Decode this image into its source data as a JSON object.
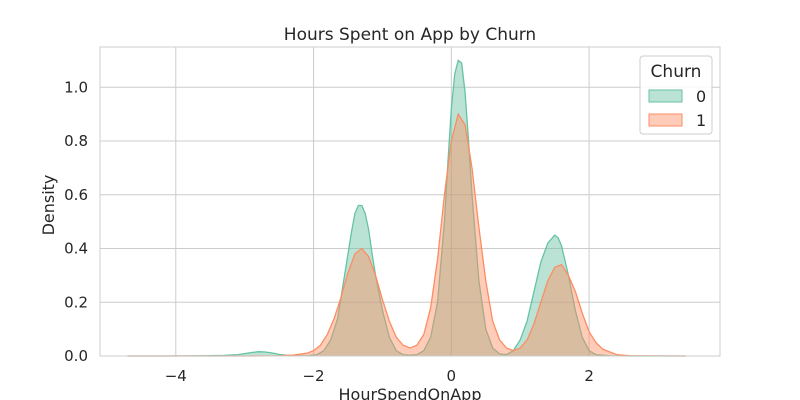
{
  "chart_data": {
    "type": "area",
    "title": "Hours Spent on App by Churn",
    "xlabel": "HourSpendOnApp",
    "ylabel": "Density",
    "xlim": [
      -5.1,
      3.9
    ],
    "ylim": [
      0,
      1.15
    ],
    "grid": true,
    "x_ticks": [
      -4,
      -2,
      0,
      2
    ],
    "x_tick_labels": [
      "−4",
      "−2",
      "0",
      "2"
    ],
    "y_ticks": [
      0,
      0.2,
      0.4,
      0.6,
      0.8,
      1.0
    ],
    "y_tick_labels": [
      "0.0",
      "0.2",
      "0.4",
      "0.6",
      "0.8",
      "1.0"
    ],
    "legend": {
      "title": "Churn",
      "placement": "top-right"
    },
    "series": [
      {
        "name": "0",
        "color": "#66c2a5",
        "x": [
          -4.7,
          -4.2,
          -3.6,
          -3.3,
          -3.1,
          -3.0,
          -2.9,
          -2.8,
          -2.7,
          -2.6,
          -2.5,
          -2.4,
          -2.3,
          -2.1,
          -1.95,
          -1.85,
          -1.75,
          -1.65,
          -1.55,
          -1.5,
          -1.45,
          -1.4,
          -1.35,
          -1.3,
          -1.25,
          -1.2,
          -1.15,
          -1.1,
          -1.0,
          -0.9,
          -0.8,
          -0.7,
          -0.6,
          -0.5,
          -0.4,
          -0.3,
          -0.2,
          -0.1,
          -0.05,
          0.0,
          0.05,
          0.1,
          0.15,
          0.2,
          0.25,
          0.3,
          0.4,
          0.5,
          0.6,
          0.7,
          0.8,
          0.9,
          1.0,
          1.1,
          1.2,
          1.3,
          1.4,
          1.5,
          1.55,
          1.6,
          1.7,
          1.8,
          1.9,
          2.0,
          2.1,
          2.3,
          2.6,
          3.0,
          3.4
        ],
        "values": [
          0,
          0,
          0.001,
          0.002,
          0.005,
          0.009,
          0.013,
          0.016,
          0.015,
          0.011,
          0.006,
          0.003,
          0.001,
          0.001,
          0.005,
          0.02,
          0.06,
          0.14,
          0.3,
          0.38,
          0.46,
          0.53,
          0.56,
          0.56,
          0.53,
          0.47,
          0.38,
          0.3,
          0.17,
          0.07,
          0.02,
          0.005,
          0.003,
          0.005,
          0.02,
          0.07,
          0.2,
          0.5,
          0.72,
          0.92,
          1.05,
          1.1,
          1.09,
          0.98,
          0.8,
          0.6,
          0.28,
          0.1,
          0.03,
          0.008,
          0.005,
          0.02,
          0.06,
          0.13,
          0.24,
          0.35,
          0.42,
          0.45,
          0.44,
          0.41,
          0.3,
          0.17,
          0.07,
          0.02,
          0.005,
          0.001,
          0,
          0,
          0
        ]
      },
      {
        "name": "1",
        "color": "#fc8d62",
        "x": [
          -4.7,
          -3.0,
          -2.5,
          -2.3,
          -2.1,
          -2.0,
          -1.9,
          -1.8,
          -1.7,
          -1.6,
          -1.5,
          -1.4,
          -1.3,
          -1.2,
          -1.1,
          -1.0,
          -0.9,
          -0.8,
          -0.7,
          -0.6,
          -0.5,
          -0.4,
          -0.3,
          -0.2,
          -0.1,
          0.0,
          0.1,
          0.2,
          0.3,
          0.4,
          0.5,
          0.6,
          0.7,
          0.8,
          0.9,
          1.0,
          1.1,
          1.2,
          1.3,
          1.4,
          1.5,
          1.6,
          1.7,
          1.8,
          1.9,
          2.0,
          2.1,
          2.2,
          2.4,
          2.6,
          3.4
        ],
        "values": [
          0,
          0,
          0.001,
          0.003,
          0.01,
          0.02,
          0.04,
          0.08,
          0.14,
          0.22,
          0.31,
          0.38,
          0.4,
          0.37,
          0.3,
          0.21,
          0.13,
          0.07,
          0.04,
          0.03,
          0.04,
          0.08,
          0.18,
          0.36,
          0.6,
          0.8,
          0.9,
          0.86,
          0.7,
          0.48,
          0.28,
          0.13,
          0.06,
          0.03,
          0.02,
          0.03,
          0.06,
          0.12,
          0.2,
          0.28,
          0.33,
          0.34,
          0.3,
          0.24,
          0.16,
          0.09,
          0.05,
          0.025,
          0.005,
          0.001,
          0
        ]
      }
    ]
  }
}
